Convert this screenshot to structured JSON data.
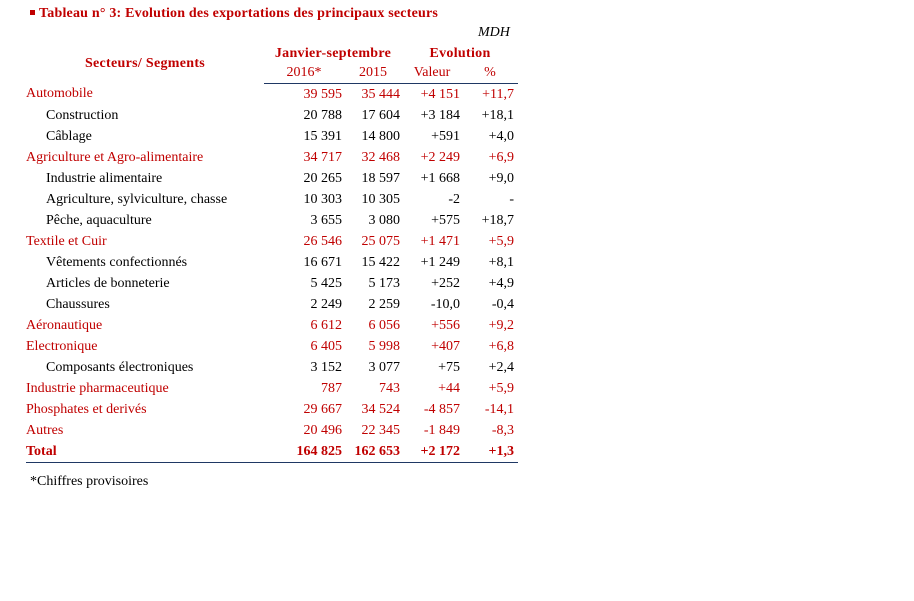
{
  "title": "Tableau n° 3: Evolution des exportations des principaux secteurs",
  "unit": "MDH",
  "headers": {
    "sectors": "Secteurs/ Segments",
    "period": "Janvier-septembre",
    "evolution": "Evolution",
    "year_2016": "2016*",
    "year_2015": "2015",
    "valeur": "Valeur",
    "pct": "%"
  },
  "rows": [
    {
      "label": "Automobile",
      "v2016": "39 595",
      "v2015": "35 444",
      "valeur": "+4 151",
      "pct": "+11,7"
    },
    {
      "label": "Construction",
      "v2016": "20 788",
      "v2015": "17 604",
      "valeur": "+3 184",
      "pct": "+18,1"
    },
    {
      "label": "Câblage",
      "v2016": "15 391",
      "v2015": "14 800",
      "valeur": "+591",
      "pct": "+4,0"
    },
    {
      "label": "Agriculture et Agro-alimentaire",
      "v2016": "34 717",
      "v2015": "32 468",
      "valeur": "+2 249",
      "pct": "+6,9"
    },
    {
      "label": "Industrie alimentaire",
      "v2016": "20 265",
      "v2015": "18 597",
      "valeur": "+1 668",
      "pct": "+9,0"
    },
    {
      "label": "Agriculture, sylviculture, chasse",
      "v2016": "10 303",
      "v2015": "10 305",
      "valeur": "-2",
      "pct": "-"
    },
    {
      "label": "Pêche, aquaculture",
      "v2016": "3 655",
      "v2015": "3 080",
      "valeur": "+575",
      "pct": "+18,7"
    },
    {
      "label": "Textile et Cuir",
      "v2016": "26 546",
      "v2015": "25 075",
      "valeur": "+1 471",
      "pct": "+5,9"
    },
    {
      "label": "Vêtements confectionnés",
      "v2016": "16 671",
      "v2015": "15 422",
      "valeur": "+1 249",
      "pct": "+8,1"
    },
    {
      "label": "Articles de bonneterie",
      "v2016": "5 425",
      "v2015": "5 173",
      "valeur": "+252",
      "pct": "+4,9"
    },
    {
      "label": "Chaussures",
      "v2016": "2 249",
      "v2015": "2 259",
      "valeur": "-10,0",
      "pct": "-0,4"
    },
    {
      "label": "Aéronautique",
      "v2016": "6 612",
      "v2015": "6 056",
      "valeur": "+556",
      "pct": "+9,2"
    },
    {
      "label": "Electronique",
      "v2016": "6 405",
      "v2015": "5 998",
      "valeur": "+407",
      "pct": "+6,8"
    },
    {
      "label": "Composants électroniques",
      "v2016": "3 152",
      "v2015": "3 077",
      "valeur": "+75",
      "pct": "+2,4"
    },
    {
      "label": "Industrie pharmaceutique",
      "v2016": "787",
      "v2015": "743",
      "valeur": "+44",
      "pct": "+5,9"
    },
    {
      "label": "Phosphates et derivés",
      "v2016": "29 667",
      "v2015": "34 524",
      "valeur": "-4 857",
      "pct": "-14,1"
    },
    {
      "label": "Autres",
      "v2016": "20 496",
      "v2015": "22 345",
      "valeur": "-1 849",
      "pct": "-8,3"
    }
  ],
  "total": {
    "label": "Total",
    "v2016": "164 825",
    "v2015": "162 653",
    "valeur": "+2 172",
    "pct": "+1,3"
  },
  "note": "*Chiffres provisoires",
  "colors": {
    "accent": "#c00000",
    "rule": "#1f3864"
  }
}
